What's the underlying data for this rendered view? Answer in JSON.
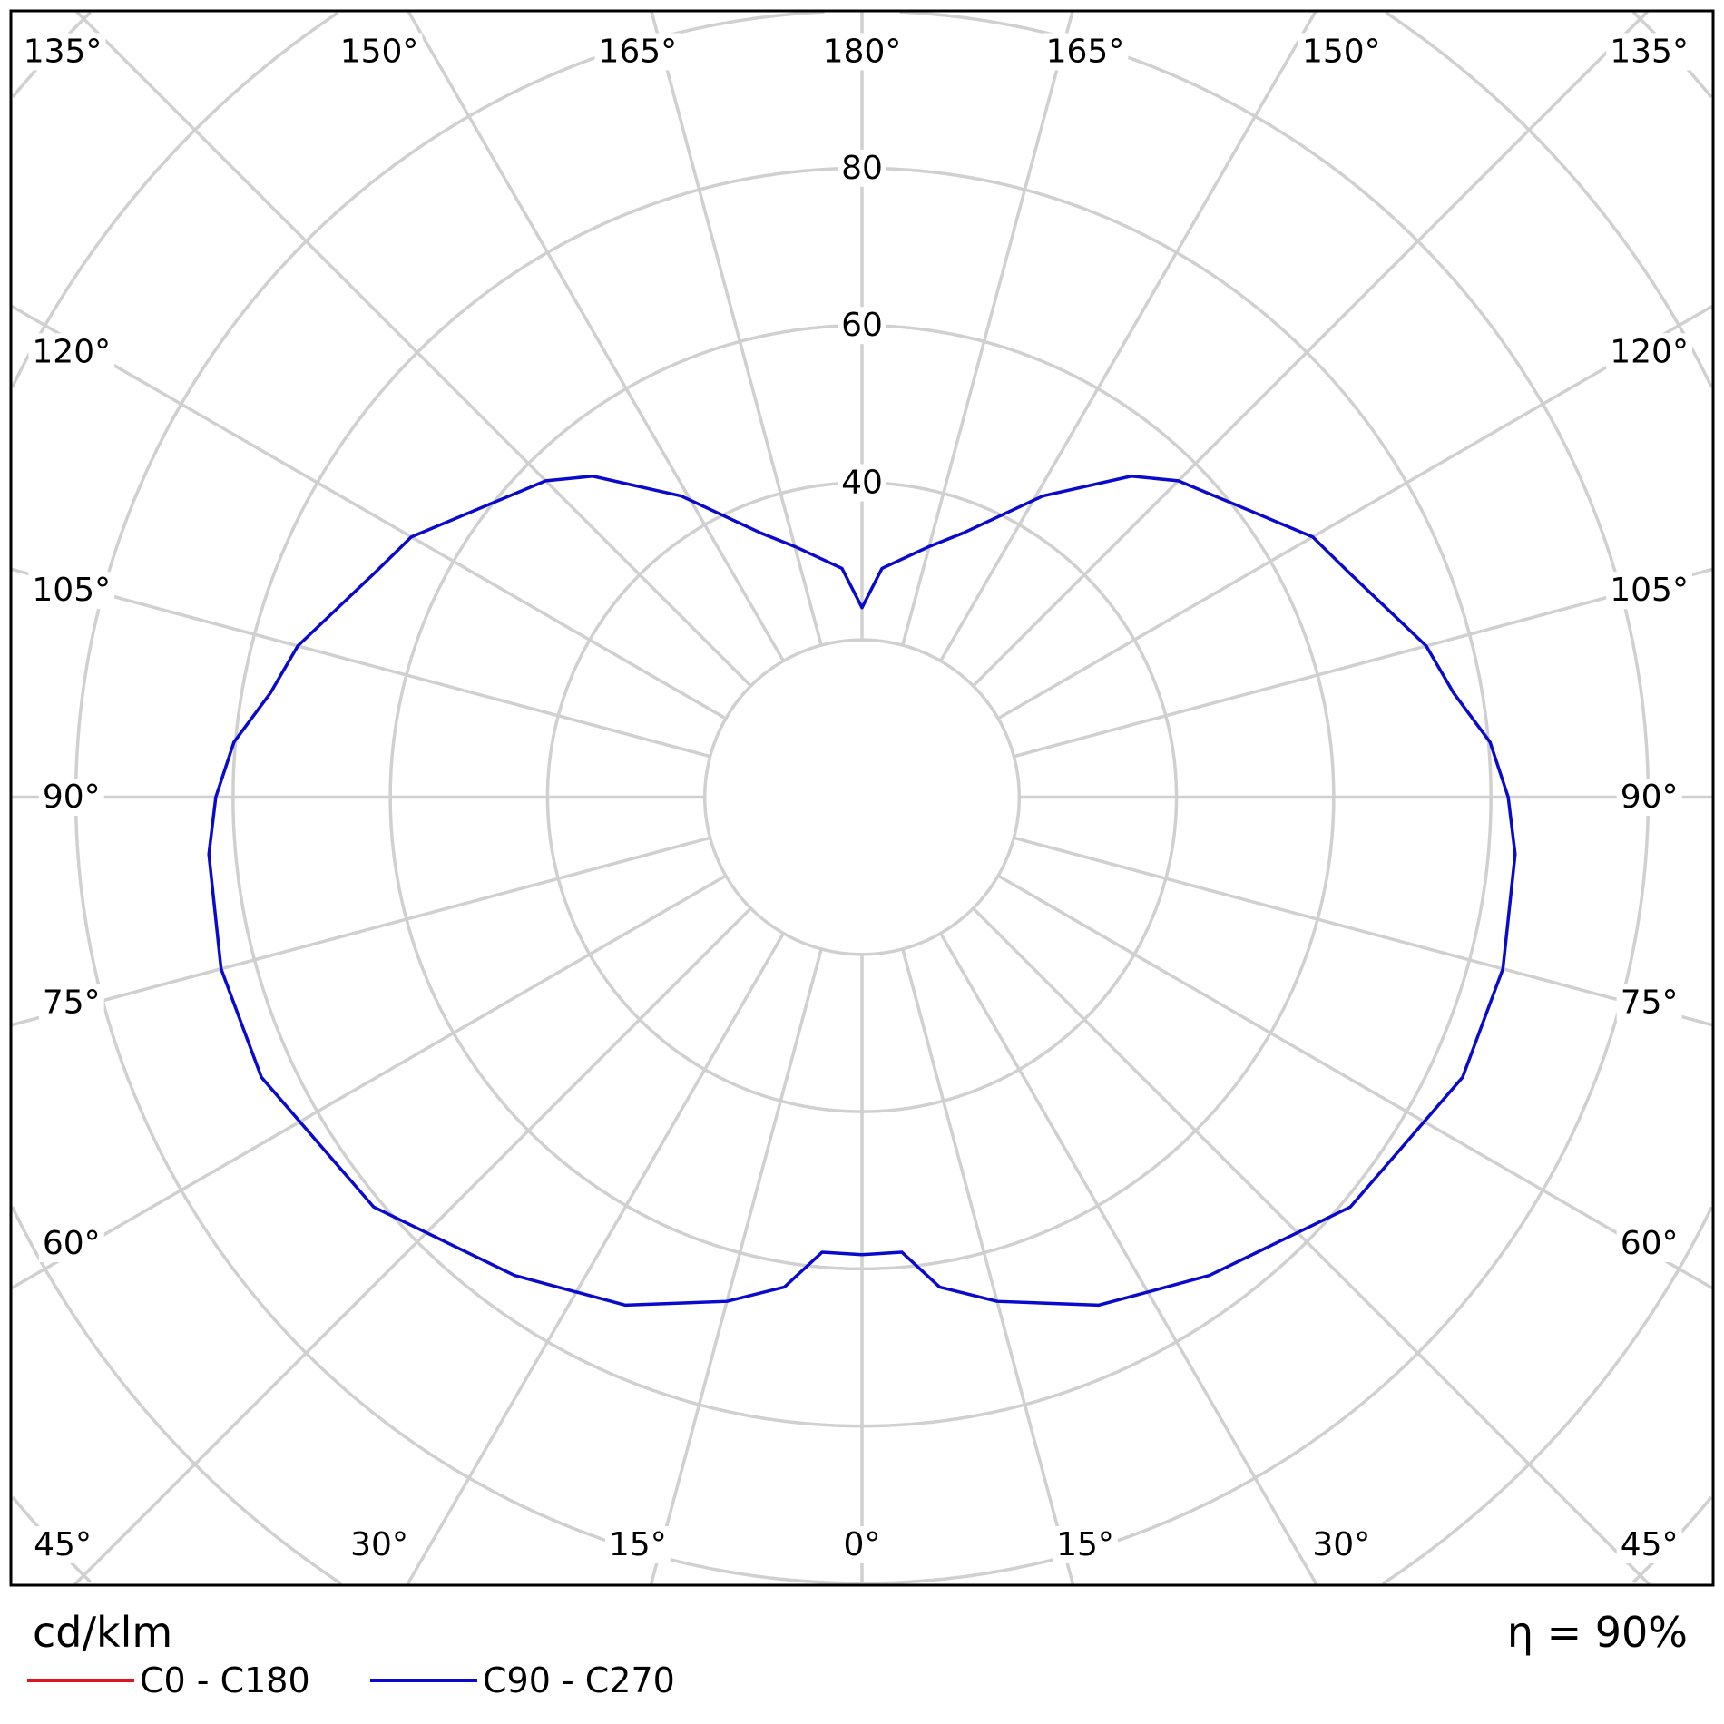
{
  "chart_data": {
    "type": "polar-line",
    "unit_label": "cd/klm",
    "efficiency_label": "η = 90%",
    "radial_ticks": [
      40,
      60,
      80
    ],
    "radial_step": 20,
    "angle_labels": {
      "top": [
        "135°",
        "150°",
        "165°",
        "180°",
        "165°",
        "150°",
        "135°"
      ],
      "left": [
        "120°",
        "105°",
        "90°",
        "75°",
        "60°"
      ],
      "right": [
        "120°",
        "105°",
        "90°",
        "75°",
        "60°"
      ],
      "bottom": [
        "45°",
        "30°",
        "15°",
        "0°",
        "15°",
        "30°",
        "45°"
      ]
    },
    "grid": true,
    "legend_placement": "bottom-left",
    "series": [
      {
        "name": "C0 - C180",
        "color": "#e0141e",
        "gamma": [],
        "values": []
      },
      {
        "name": "C90 - C270",
        "color": "#0a0acd",
        "symmetric": true,
        "gamma": [
          0,
          5,
          9,
          15,
          25,
          36,
          50,
          65,
          75,
          85,
          90,
          95,
          100,
          105,
          115,
          120,
          135,
          140,
          149,
          159,
          165,
          175,
          180
        ],
        "values": [
          58.2,
          58.1,
          63.1,
          66.4,
          71.3,
          75.2,
          81.1,
          84.3,
          84.4,
          83.4,
          82.2,
          80.2,
          76.4,
          74.3,
          68.1,
          66.2,
          56.9,
          53.3,
          44.7,
          36.0,
          33.0,
          29.2,
          24.1
        ]
      }
    ]
  }
}
